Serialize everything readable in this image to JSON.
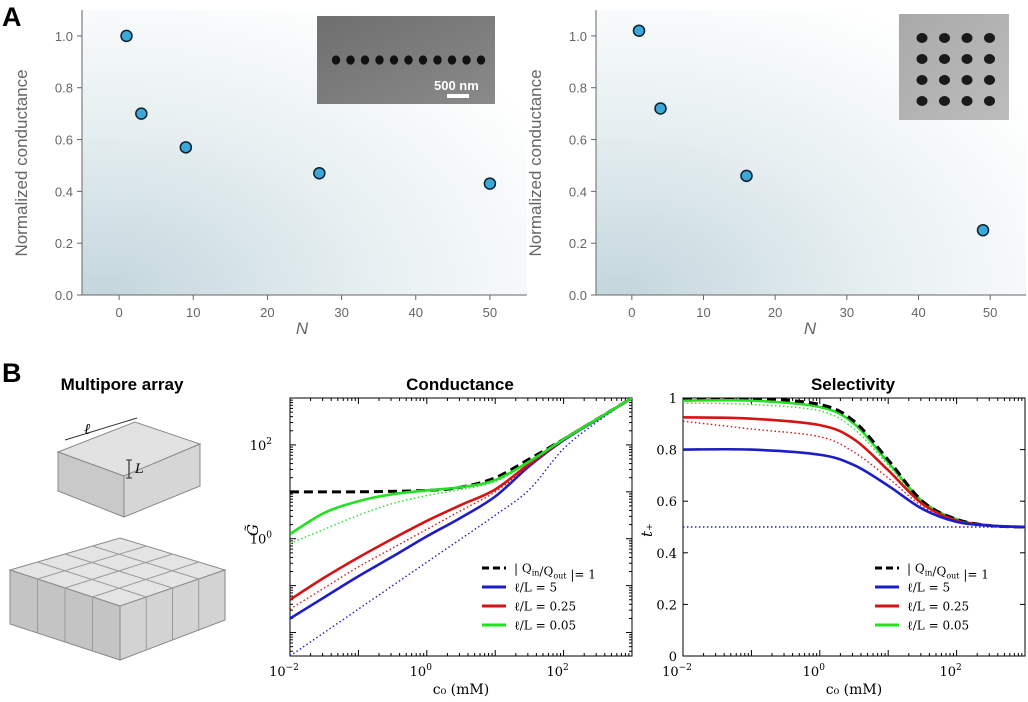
{
  "panel_labels": {
    "a": "A",
    "b": "B"
  },
  "panel_b_headers": {
    "multipore": "Multipore array",
    "ell_symbol": "ℓ",
    "L_symbol": "L"
  },
  "colors": {
    "marker_fill": "#3aa8d8",
    "marker_edge": "#0d2030",
    "axis": "#666666",
    "bg_tint": "#cfe0e6",
    "dashed": "#000000",
    "blue": "#1c1cc8",
    "red": "#d41414",
    "green": "#22e022"
  },
  "chart_data": [
    {
      "id": "a-left",
      "type": "scatter",
      "title": "",
      "xlabel": "N",
      "ylabel": "Normalized conductance",
      "xlim": [
        -5,
        55
      ],
      "ylim": [
        0,
        1.1
      ],
      "xticks": [
        "0",
        "10",
        "20",
        "30",
        "40",
        "50"
      ],
      "xtick_values": [
        0,
        10,
        20,
        30,
        40,
        50
      ],
      "yticks": [
        "0.0",
        "0.2",
        "0.4",
        "0.6",
        "0.8",
        "1.0"
      ],
      "ytick_values": [
        0,
        0.2,
        0.4,
        0.6,
        0.8,
        1.0
      ],
      "points": [
        {
          "x": 1,
          "y": 1.0
        },
        {
          "x": 3,
          "y": 0.7
        },
        {
          "x": 9,
          "y": 0.57
        },
        {
          "x": 27,
          "y": 0.47
        },
        {
          "x": 50,
          "y": 0.43
        }
      ],
      "inset": {
        "description": "single row of 11 pores",
        "rows": 1,
        "cols": 11,
        "scalebar": "500 nm"
      }
    },
    {
      "id": "a-right",
      "type": "scatter",
      "title": "",
      "xlabel": "N",
      "ylabel": "Normalized conductance",
      "xlim": [
        -5,
        55
      ],
      "ylim": [
        0,
        1.1
      ],
      "xticks": [
        "0",
        "10",
        "20",
        "30",
        "40",
        "50"
      ],
      "xtick_values": [
        0,
        10,
        20,
        30,
        40,
        50
      ],
      "yticks": [
        "0.0",
        "0.2",
        "0.4",
        "0.6",
        "0.8",
        "1.0"
      ],
      "ytick_values": [
        0,
        0.2,
        0.4,
        0.6,
        0.8,
        1.0
      ],
      "points": [
        {
          "x": 1,
          "y": 1.02
        },
        {
          "x": 4,
          "y": 0.72
        },
        {
          "x": 16,
          "y": 0.46
        },
        {
          "x": 49,
          "y": 0.25
        }
      ],
      "inset": {
        "description": "4x4 pore array",
        "rows": 4,
        "cols": 4
      }
    },
    {
      "id": "b-conductance",
      "type": "line",
      "title": "Conductance",
      "xlabel": "c₀ (mM)",
      "ylabel": "G̃",
      "xscale": "log",
      "yscale": "log",
      "xlim_log10": [
        -2,
        3
      ],
      "ylim_log10": [
        -2.5,
        3
      ],
      "xticks": [
        {
          "base": "10",
          "exp": "−2",
          "v": -2
        },
        {
          "base": "10",
          "exp": "0",
          "v": 0
        },
        {
          "base": "10",
          "exp": "2",
          "v": 2
        }
      ],
      "yticks": [
        {
          "base": "10",
          "exp": "0",
          "v": 0
        },
        {
          "base": "10",
          "exp": "2",
          "v": 2
        }
      ],
      "legend_position": "bottom-right",
      "legend": [
        {
          "key": "dashed",
          "label_html": "| Q<sub>in</sub>/Q<sub>out</sub> |= 1",
          "label": "| Q_in/Q_out |= 1"
        },
        {
          "key": "blue",
          "label": "ℓ/L = 5"
        },
        {
          "key": "red",
          "label": "ℓ/L = 0.25"
        },
        {
          "key": "green",
          "label": "ℓ/L = 0.05"
        }
      ],
      "series": [
        {
          "name": "| Q_in/Q_out |= 1",
          "color_key": "dashed",
          "style": "dashed",
          "x_log": [
            -2,
            -1,
            0,
            0.5,
            1,
            1.5,
            2,
            2.5,
            3
          ],
          "y_log": [
            1.0,
            1.0,
            1.03,
            1.1,
            1.3,
            1.7,
            2.12,
            2.56,
            3.0
          ]
        },
        {
          "name": "ℓ/L = 5",
          "color_key": "blue",
          "style": "solid",
          "x_log": [
            -2,
            -1.5,
            -1,
            -0.5,
            0,
            0.5,
            1,
            1.5,
            2,
            2.5,
            3
          ],
          "y_log": [
            -1.7,
            -1.25,
            -0.8,
            -0.38,
            0.05,
            0.45,
            0.9,
            1.55,
            2.1,
            2.55,
            3.0
          ]
        },
        {
          "name": "ℓ/L = 5 (dotted)",
          "color_key": "blue",
          "style": "dotted",
          "x_log": [
            -2,
            -1,
            0,
            1,
            1.5,
            2,
            2.5,
            3
          ],
          "y_log": [
            -2.5,
            -1.5,
            -0.5,
            0.5,
            1.05,
            1.92,
            2.5,
            3.0
          ]
        },
        {
          "name": "ℓ/L = 0.25",
          "color_key": "red",
          "style": "solid",
          "x_log": [
            -2,
            -1.5,
            -1,
            -0.5,
            0,
            0.5,
            1,
            1.5,
            2,
            2.5,
            3
          ],
          "y_log": [
            -1.3,
            -0.83,
            -0.4,
            0.0,
            0.38,
            0.72,
            1.05,
            1.6,
            2.12,
            2.56,
            3.0
          ]
        },
        {
          "name": "ℓ/L = 0.25 (dotted)",
          "color_key": "red",
          "style": "dotted",
          "x_log": [
            -2,
            -1.5,
            -1,
            -0.5,
            0,
            0.5,
            1,
            1.5,
            2,
            2.5,
            3
          ],
          "y_log": [
            -1.5,
            -1.05,
            -0.6,
            -0.2,
            0.2,
            0.6,
            1.0,
            1.55,
            2.1,
            2.55,
            3.0
          ]
        },
        {
          "name": "ℓ/L = 0.05",
          "color_key": "green",
          "style": "solid",
          "x_log": [
            -2,
            -1.5,
            -1,
            -0.5,
            0,
            0.5,
            1,
            1.5,
            2,
            2.5,
            3
          ],
          "y_log": [
            0.1,
            0.55,
            0.8,
            0.95,
            1.03,
            1.1,
            1.25,
            1.65,
            2.12,
            2.56,
            3.0
          ]
        },
        {
          "name": "ℓ/L = 0.05 (dotted)",
          "color_key": "green",
          "style": "dotted",
          "x_log": [
            -2,
            -1.5,
            -1,
            -0.5,
            0,
            0.5,
            1,
            1.5,
            2,
            2.5,
            3
          ],
          "y_log": [
            -0.1,
            0.2,
            0.5,
            0.75,
            0.92,
            1.05,
            1.22,
            1.63,
            2.12,
            2.56,
            3.0
          ]
        }
      ]
    },
    {
      "id": "b-selectivity",
      "type": "line",
      "title": "Selectivity",
      "xlabel": "c₀ (mM)",
      "ylabel": "t₊",
      "xscale": "log",
      "xlim_log10": [
        -2,
        3
      ],
      "ylim": [
        0,
        1
      ],
      "xticks": [
        {
          "base": "10",
          "exp": "−2",
          "v": -2
        },
        {
          "base": "10",
          "exp": "0",
          "v": 0
        },
        {
          "base": "10",
          "exp": "2",
          "v": 2
        }
      ],
      "yticks": [
        {
          "label": "0",
          "v": 0
        },
        {
          "label": "0.2",
          "v": 0.2
        },
        {
          "label": "0.4",
          "v": 0.4
        },
        {
          "label": "0.6",
          "v": 0.6
        },
        {
          "label": "0.8",
          "v": 0.8
        },
        {
          "label": "1",
          "v": 1
        }
      ],
      "legend_position": "bottom-right",
      "legend": [
        {
          "key": "dashed",
          "label_html": "| Q<sub>in</sub>/Q<sub>out</sub> |= 1",
          "label": "| Q_in/Q_out |= 1"
        },
        {
          "key": "blue",
          "label": "ℓ/L = 5"
        },
        {
          "key": "red",
          "label": "ℓ/L = 0.25"
        },
        {
          "key": "green",
          "label": "ℓ/L = 0.05"
        }
      ],
      "series": [
        {
          "name": "ℓ/L = 5 (dotted)",
          "color_key": "blue",
          "style": "dotted",
          "x_log": [
            -2,
            3
          ],
          "y": [
            0.5,
            0.5
          ]
        },
        {
          "name": "ℓ/L = 0.05",
          "color_key": "green",
          "style": "solid",
          "x_log": [
            -2,
            -1,
            0,
            0.5,
            1,
            1.5,
            2,
            2.5,
            3
          ],
          "y": [
            0.99,
            0.99,
            0.965,
            0.9,
            0.75,
            0.6,
            0.53,
            0.505,
            0.5
          ]
        },
        {
          "name": "ℓ/L = 0.05 (dotted)",
          "color_key": "green",
          "style": "dotted",
          "x_log": [
            -2,
            -1,
            0,
            0.5,
            1,
            1.5,
            2,
            2.5,
            3
          ],
          "y": [
            0.98,
            0.975,
            0.95,
            0.88,
            0.74,
            0.595,
            0.53,
            0.505,
            0.5
          ]
        },
        {
          "name": "| Q_in/Q_out |= 1",
          "color_key": "dashed",
          "style": "dashed",
          "x_log": [
            -2,
            -1,
            0,
            0.5,
            1,
            1.5,
            2,
            2.5,
            3
          ],
          "y": [
            1.0,
            1.0,
            0.975,
            0.91,
            0.76,
            0.6,
            0.53,
            0.505,
            0.5
          ]
        },
        {
          "name": "ℓ/L = 0.25",
          "color_key": "red",
          "style": "solid",
          "x_log": [
            -2,
            -1,
            0,
            0.5,
            1,
            1.5,
            2,
            2.5,
            3
          ],
          "y": [
            0.925,
            0.92,
            0.895,
            0.84,
            0.72,
            0.59,
            0.525,
            0.505,
            0.5
          ]
        },
        {
          "name": "ℓ/L = 0.25 (dotted)",
          "color_key": "red",
          "style": "dotted",
          "x_log": [
            -2,
            -1,
            0,
            0.5,
            1,
            1.5,
            2,
            2.5,
            3
          ],
          "y": [
            0.91,
            0.88,
            0.85,
            0.79,
            0.69,
            0.58,
            0.52,
            0.505,
            0.5
          ]
        },
        {
          "name": "ℓ/L = 5",
          "color_key": "blue",
          "style": "solid",
          "x_log": [
            -2,
            -1,
            0,
            0.5,
            1,
            1.5,
            2,
            2.5,
            3
          ],
          "y": [
            0.8,
            0.8,
            0.78,
            0.74,
            0.66,
            0.57,
            0.52,
            0.505,
            0.5
          ]
        }
      ]
    }
  ]
}
